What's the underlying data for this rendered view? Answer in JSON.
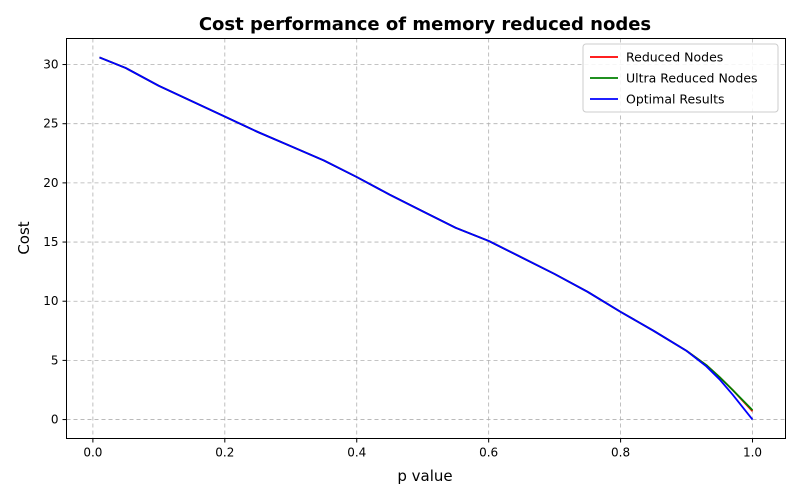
{
  "chart_data": {
    "type": "line",
    "title": "Cost performance of memory reduced nodes",
    "xlabel": "p value",
    "ylabel": "Cost",
    "xlim": [
      -0.04,
      1.05
    ],
    "ylim": [
      -1.6,
      32.2
    ],
    "xticks": [
      0.0,
      0.2,
      0.4,
      0.6,
      0.8,
      1.0
    ],
    "xtick_labels": [
      "0.0",
      "0.2",
      "0.4",
      "0.6",
      "0.8",
      "1.0"
    ],
    "yticks": [
      0,
      5,
      10,
      15,
      20,
      25,
      30
    ],
    "ytick_labels": [
      "0",
      "5",
      "10",
      "15",
      "20",
      "25",
      "30"
    ],
    "grid": true,
    "legend_position": "top-right",
    "x": [
      0.01,
      0.05,
      0.1,
      0.15,
      0.2,
      0.25,
      0.3,
      0.35,
      0.4,
      0.45,
      0.5,
      0.55,
      0.6,
      0.65,
      0.7,
      0.75,
      0.8,
      0.85,
      0.9,
      0.93,
      0.95,
      0.97,
      1.0
    ],
    "series": [
      {
        "name": "Reduced Nodes",
        "color": "#ff0000",
        "values": [
          30.6,
          29.7,
          28.2,
          26.9,
          25.6,
          24.3,
          23.1,
          21.9,
          20.5,
          19.0,
          17.6,
          16.2,
          15.1,
          13.7,
          12.3,
          10.8,
          9.1,
          7.5,
          5.8,
          4.6,
          3.6,
          2.5,
          0.7
        ]
      },
      {
        "name": "Ultra Reduced Nodes",
        "color": "#008000",
        "values": [
          30.6,
          29.7,
          28.2,
          26.9,
          25.6,
          24.3,
          23.1,
          21.9,
          20.5,
          19.0,
          17.6,
          16.2,
          15.1,
          13.7,
          12.3,
          10.8,
          9.1,
          7.5,
          5.8,
          4.6,
          3.6,
          2.5,
          0.8
        ]
      },
      {
        "name": "Optimal Results",
        "color": "#0000ff",
        "values": [
          30.6,
          29.7,
          28.2,
          26.9,
          25.6,
          24.3,
          23.1,
          21.9,
          20.5,
          19.0,
          17.6,
          16.2,
          15.1,
          13.7,
          12.3,
          10.8,
          9.1,
          7.5,
          5.8,
          4.5,
          3.4,
          2.1,
          0.0
        ]
      }
    ]
  }
}
